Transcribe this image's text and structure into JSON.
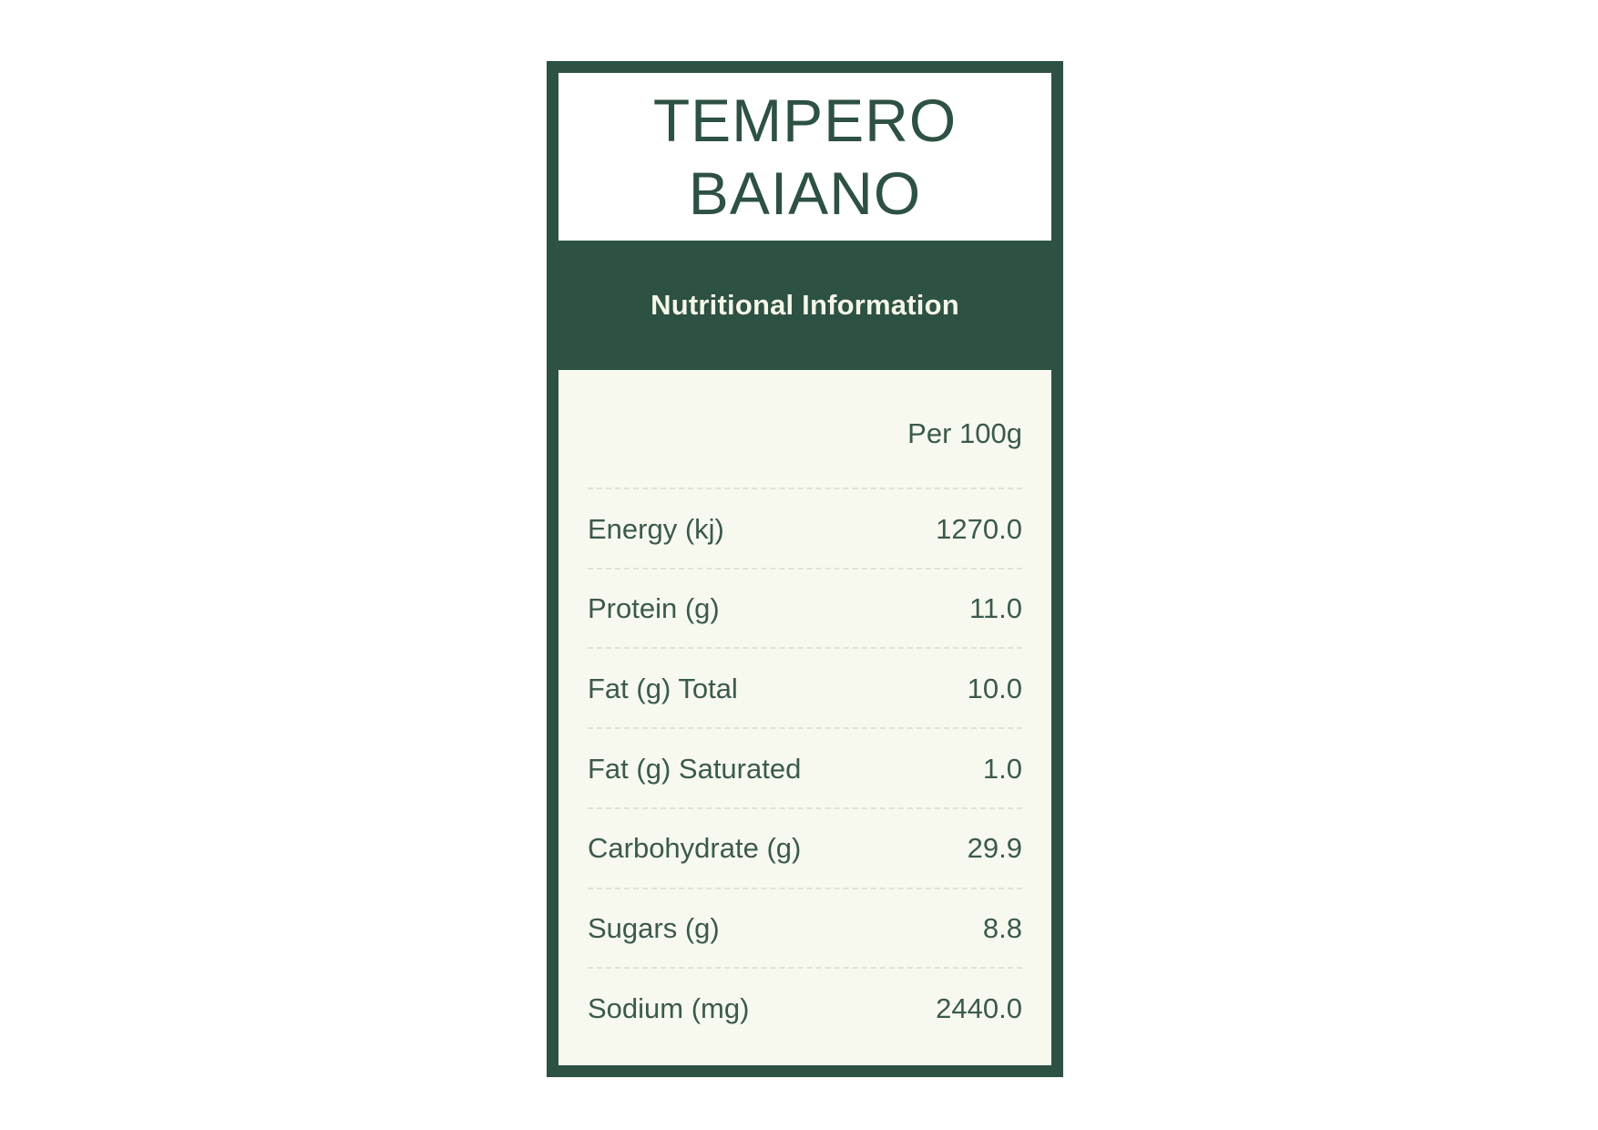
{
  "colors": {
    "brand_green": "#2d5142",
    "panel_cream": "#f7f9ef",
    "text_green": "#3b5a4c"
  },
  "title": {
    "line1": "TEMPERO",
    "line2": "BAIANO"
  },
  "section_header": "Nutritional Information",
  "column_header": "Per 100g",
  "rows": [
    {
      "label": "Energy (kj)",
      "value": "1270.0"
    },
    {
      "label": "Protein (g)",
      "value": "11.0"
    },
    {
      "label": "Fat (g) Total",
      "value": "10.0"
    },
    {
      "label": "Fat (g) Saturated",
      "value": "1.0"
    },
    {
      "label": "Carbohydrate (g)",
      "value": "29.9"
    },
    {
      "label": "Sugars (g)",
      "value": "8.8"
    },
    {
      "label": "Sodium (mg)",
      "value": "2440.0"
    }
  ]
}
